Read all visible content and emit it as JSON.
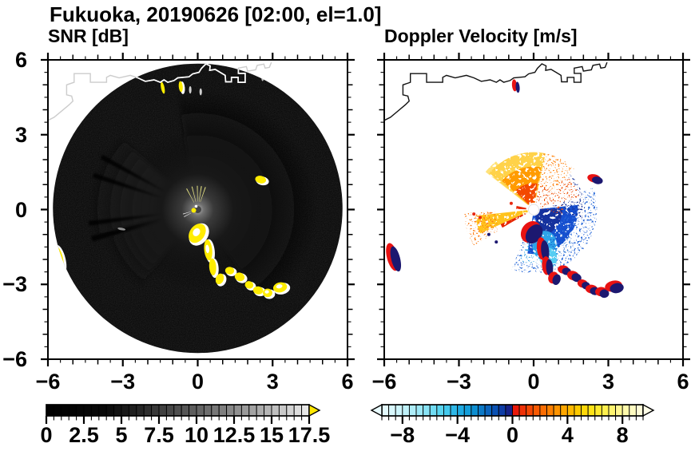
{
  "title": "Fukuoka, 20190626 [02:00, el=1.0]",
  "chart_data": {
    "type": "radar_ppi_pair",
    "site": "Fukuoka",
    "date": "20190626",
    "time": "02:00",
    "elevation": "el=1.0",
    "axes": {
      "xlim": [
        -6,
        6
      ],
      "ylim": [
        -6,
        6
      ],
      "minor_step": 0.5,
      "xtick_vals": [
        -6,
        -3,
        0,
        3,
        6
      ],
      "xtick_labels": [
        "−6",
        "−3",
        "0",
        "3",
        "6"
      ],
      "ytick_vals": [
        6,
        3,
        0,
        -3,
        -6
      ],
      "ytick_labels": [
        "6",
        "3",
        "0",
        "−3",
        "−6"
      ]
    },
    "panels": [
      {
        "id": "snr",
        "label": "SNR [dB]",
        "colorbar": {
          "min": 0,
          "max": 17.5,
          "cell_step": 0.5,
          "tick_vals": [
            0,
            2.5,
            5,
            7.5,
            10,
            12.5,
            15,
            17.5
          ],
          "tick_labels": [
            "0",
            "2.5",
            "5",
            "7.5",
            "10",
            "12.5",
            "15",
            "17.5"
          ],
          "over_arrow_color": "#ffe800",
          "stops": [
            [
              0,
              "#000000"
            ],
            [
              4,
              "#0a0a0a"
            ],
            [
              6,
              "#222222"
            ],
            [
              7.5,
              "#3c3c3c"
            ],
            [
              10,
              "#616161"
            ],
            [
              12.5,
              "#8c8c8c"
            ],
            [
              15,
              "#bababa"
            ],
            [
              17.5,
              "#ececec"
            ]
          ]
        }
      },
      {
        "id": "vel",
        "label": "Doppler Velocity [m/s]",
        "colorbar": {
          "min": -9.5,
          "max": 9.5,
          "cell_step": 0.5,
          "tick_vals": [
            -8,
            -4,
            0,
            4,
            8
          ],
          "tick_labels": [
            "−8",
            "−4",
            "0",
            "4",
            "8"
          ],
          "under_arrow_color": "#e9fbfe",
          "over_arrow_color": "#fffde8",
          "stops": [
            [
              -9.5,
              "#e8fbfe"
            ],
            [
              -8,
              "#c8f3fa"
            ],
            [
              -6.5,
              "#93e6f6"
            ],
            [
              -5,
              "#4ed1ef"
            ],
            [
              -4,
              "#24b0e6"
            ],
            [
              -3,
              "#0e98d6"
            ],
            [
              -2,
              "#0b6ec2"
            ],
            [
              -1,
              "#0a47ae"
            ],
            [
              -0.5,
              "#12309b"
            ],
            [
              -0.01,
              "#191276"
            ],
            [
              0.01,
              "#e60c0c"
            ],
            [
              1,
              "#f23d05"
            ],
            [
              2,
              "#fa6302"
            ],
            [
              3,
              "#fe8a00"
            ],
            [
              4,
              "#ffb000"
            ],
            [
              5,
              "#ffd200"
            ],
            [
              6,
              "#ffe81e"
            ],
            [
              7,
              "#fff25e"
            ],
            [
              8,
              "#fff9a0"
            ],
            [
              9.5,
              "#fffde2"
            ]
          ]
        }
      }
    ],
    "disc": {
      "cx": 0,
      "cy": 0.05,
      "r": 5.8,
      "fill": "#060606"
    },
    "coastline": [
      [
        -6.05,
        3.55
      ],
      [
        -5.75,
        3.7
      ],
      [
        -5.45,
        3.95
      ],
      [
        -5.15,
        4.2
      ],
      [
        -5.0,
        4.35
      ],
      [
        -5.05,
        4.55
      ],
      [
        -5.25,
        4.6
      ],
      [
        -5.25,
        5.0
      ],
      [
        -4.95,
        5.1
      ],
      [
        -4.95,
        5.45
      ],
      [
        -4.3,
        5.45
      ],
      [
        -4.3,
        5.1
      ],
      [
        -3.65,
        5.1
      ],
      [
        -3.65,
        5.3
      ],
      [
        -3.5,
        5.38
      ],
      [
        -3.15,
        5.28
      ],
      [
        -2.7,
        5.38
      ],
      [
        -2.4,
        5.28
      ],
      [
        -2.1,
        5.14
      ],
      [
        -1.75,
        5.2
      ],
      [
        -1.5,
        5.1
      ],
      [
        -1.35,
        5.2
      ],
      [
        -1.2,
        5.1
      ],
      [
        -0.95,
        5.17
      ],
      [
        -0.8,
        5.28
      ],
      [
        -0.35,
        5.32
      ],
      [
        -0.2,
        5.44
      ],
      [
        0.05,
        5.5
      ],
      [
        0.15,
        5.66
      ],
      [
        0.33,
        5.84
      ],
      [
        0.5,
        5.76
      ],
      [
        0.48,
        5.58
      ],
      [
        0.7,
        5.62
      ],
      [
        0.9,
        5.5
      ],
      [
        1.1,
        5.38
      ],
      [
        1.12,
        5.12
      ],
      [
        1.35,
        5.12
      ],
      [
        1.35,
        5.3
      ],
      [
        1.62,
        5.3
      ],
      [
        1.62,
        5.1
      ],
      [
        1.9,
        5.1
      ],
      [
        1.9,
        5.46
      ],
      [
        1.63,
        5.46
      ],
      [
        1.63,
        5.67
      ],
      [
        1.95,
        5.73
      ],
      [
        2.0,
        5.55
      ],
      [
        2.32,
        5.6
      ],
      [
        2.38,
        5.78
      ],
      [
        2.65,
        5.83
      ],
      [
        2.7,
        5.67
      ],
      [
        2.87,
        5.7
      ],
      [
        2.95,
        5.9
      ]
    ],
    "snr": {
      "glow_sectors": [
        {
          "a1": -55,
          "a2": 100,
          "r0": 0,
          "r1": 4.8,
          "grad": "gRight",
          "blur": 4,
          "opacity": 1
        },
        {
          "a1": 197,
          "a2": 233,
          "r0": 0,
          "r1": 3.9,
          "grad": "gLower",
          "blur": 4,
          "opacity": 0.85
        },
        {
          "a1": 137,
          "a2": 194,
          "r0": 0,
          "r1": 4.35,
          "grad": "gWedge",
          "blur": 3,
          "opacity": 1
        }
      ],
      "core_radius": 3.2,
      "dark_rays": [
        [
          150,
          152.5
        ],
        [
          160.5,
          163
        ],
        [
          186,
          188.5
        ],
        [
          194,
          197
        ]
      ],
      "dark_ray_r": 4.4,
      "spokes": [
        [
          70,
          72
        ],
        [
          80,
          82
        ],
        [
          90,
          92
        ],
        [
          103,
          105
        ],
        [
          117,
          119
        ]
      ],
      "white_spokes": [
        [
          196,
          198
        ],
        [
          207,
          209
        ]
      ],
      "spoke_color": "#f7f28a",
      "echo_color": "#ffec00",
      "echo_fringe": "#ffffff",
      "extra_marks": [
        {
          "x": -1.4,
          "y": 4.88,
          "rx": 0.07,
          "ry": 0.24,
          "rot": 12,
          "c": "#ffee00"
        },
        {
          "x": -0.3,
          "y": 4.8,
          "rx": 0.05,
          "ry": 0.15,
          "rot": 0,
          "c": "#cfcfcf"
        },
        {
          "x": 0.12,
          "y": 4.72,
          "rx": 0.05,
          "ry": 0.14,
          "rot": 0,
          "c": "#cfcfcf"
        },
        {
          "x": 2.6,
          "y": 5.28,
          "rx": 0.05,
          "ry": 0.13,
          "rot": 0,
          "c": "#bdbdbd"
        },
        {
          "x": -3.05,
          "y": -0.78,
          "rx": 0.16,
          "ry": 0.05,
          "rot": -10,
          "c": "#909090"
        }
      ]
    },
    "vel": {
      "coast_color": "#111111",
      "center_hole": {
        "r": 0.21,
        "c": "#ffffff"
      },
      "clutter_main": "#1c1870",
      "clutter_fringe": "#e81212",
      "fans": [
        {
          "a1": 262,
          "a2": 366,
          "r0": 0.25,
          "r1": 1.78,
          "c": "#1250cf",
          "d": "d1"
        },
        {
          "a1": 285,
          "a2": 362,
          "r0": 0.25,
          "r1": 1.15,
          "c": "#16329e",
          "d": "d1"
        },
        {
          "a1": 250,
          "a2": 380,
          "r0": 1.2,
          "r1": 2.55,
          "c": "#2b6ad8",
          "d": "d2"
        },
        {
          "a1": 255,
          "a2": 300,
          "r0": 0.9,
          "r1": 2.15,
          "c": "#2f9fe3",
          "d": "d2"
        },
        {
          "a1": 350,
          "a2": 420,
          "r0": 0.8,
          "r1": 2.05,
          "c": "#18309a",
          "d": "d2"
        },
        {
          "a1": 128,
          "a2": 142,
          "r0": 0.3,
          "r1": 2.45,
          "c": "#ffe27a",
          "d": "d1"
        },
        {
          "a1": 78,
          "a2": 141,
          "r0": 0.28,
          "r1": 2.3,
          "c": "#ffd24a",
          "d": "d1"
        },
        {
          "a1": 80,
          "a2": 138,
          "r0": 0.28,
          "r1": 1.72,
          "c": "#ff9b06",
          "d": "d1"
        },
        {
          "a1": 82,
          "a2": 135,
          "r0": 0.28,
          "r1": 1.05,
          "c": "#f34a00",
          "d": "d1"
        },
        {
          "a1": 15,
          "a2": 80,
          "r0": 0.3,
          "r1": 1.9,
          "c": "#ef5510",
          "d": "d2"
        },
        {
          "a1": 45,
          "a2": 80,
          "r0": 1.0,
          "r1": 2.3,
          "c": "#ff8c20",
          "d": "d2"
        },
        {
          "a1": 352,
          "a2": 368,
          "r0": 0.3,
          "r1": 1.2,
          "c": "#e84a10",
          "d": "d2"
        },
        {
          "a1": 186,
          "a2": 204,
          "r0": 0.25,
          "r1": 2.35,
          "c": "#ffc31e",
          "d": "d1"
        },
        {
          "a1": 183,
          "a2": 211,
          "r0": 1.55,
          "r1": 2.8,
          "c": "#fe7d14",
          "d": "d2"
        },
        {
          "a1": 204,
          "a2": 210,
          "r0": 0.35,
          "r1": 1.45,
          "c": "#e62800",
          "d": "d1"
        },
        {
          "a1": 168,
          "a2": 178,
          "r0": 0.3,
          "r1": 0.7,
          "c": "#e62800",
          "d": "d1"
        }
      ],
      "ellipses": [
        {
          "x": 0.45,
          "y": -1.45,
          "rx": 0.5,
          "ry": 0.6,
          "c": "#2fa3e8",
          "d": "d1"
        },
        {
          "x": 0.6,
          "y": -1.95,
          "rx": 0.34,
          "ry": 0.42,
          "c": "#55cdf2",
          "d": "d1"
        },
        {
          "x": 1.1,
          "y": -1.3,
          "rx": 0.45,
          "ry": 0.5,
          "c": "#1565cf",
          "d": "d2"
        }
      ],
      "small_dots": [
        {
          "x": -1.8,
          "y": -1.0,
          "c": "#1c1870"
        },
        {
          "x": -1.5,
          "y": -1.3,
          "c": "#1c1870"
        },
        {
          "x": -2.15,
          "y": -0.32,
          "c": "#e82810"
        },
        {
          "x": -2.4,
          "y": -0.18,
          "c": "#e82810"
        },
        {
          "x": -0.9,
          "y": 0.25,
          "c": "#e82810"
        }
      ]
    },
    "clutter_blobs": [
      {
        "x": -5.58,
        "y": -1.95,
        "rx": 0.18,
        "ry": 0.52,
        "rot": 14,
        "w": 1
      },
      {
        "x": -0.02,
        "y": -0.95,
        "rx": 0.3,
        "ry": 0.42,
        "rot": -35,
        "w": 1
      },
      {
        "x": 0.42,
        "y": -1.62,
        "rx": 0.16,
        "ry": 0.42,
        "rot": 6,
        "w": 1
      },
      {
        "x": 0.6,
        "y": -2.3,
        "rx": 0.14,
        "ry": 0.34,
        "rot": 4,
        "w": 0
      },
      {
        "x": 0.88,
        "y": -2.78,
        "rx": 0.16,
        "ry": 0.22,
        "rot": -20,
        "w": 0
      },
      {
        "x": 1.28,
        "y": -2.45,
        "rx": 0.18,
        "ry": 0.15,
        "rot": -5,
        "w": 0
      },
      {
        "x": 1.68,
        "y": -2.7,
        "rx": 0.2,
        "ry": 0.17,
        "rot": -20,
        "w": 0
      },
      {
        "x": 2.06,
        "y": -3.02,
        "rx": 0.17,
        "ry": 0.15,
        "rot": -15,
        "w": 0
      },
      {
        "x": 2.42,
        "y": -3.24,
        "rx": 0.2,
        "ry": 0.16,
        "rot": -8,
        "w": 0
      },
      {
        "x": 2.8,
        "y": -3.34,
        "rx": 0.19,
        "ry": 0.17,
        "rot": 4,
        "w": 1
      },
      {
        "x": 3.3,
        "y": -3.12,
        "rx": 0.28,
        "ry": 0.2,
        "rot": 12,
        "w": 1
      },
      {
        "x": 2.52,
        "y": 1.2,
        "rx": 0.22,
        "ry": 0.15,
        "rot": -12,
        "w": 0
      },
      {
        "x": -0.68,
        "y": 4.93,
        "rx": 0.08,
        "ry": 0.22,
        "rot": 5,
        "w": 0
      }
    ]
  }
}
